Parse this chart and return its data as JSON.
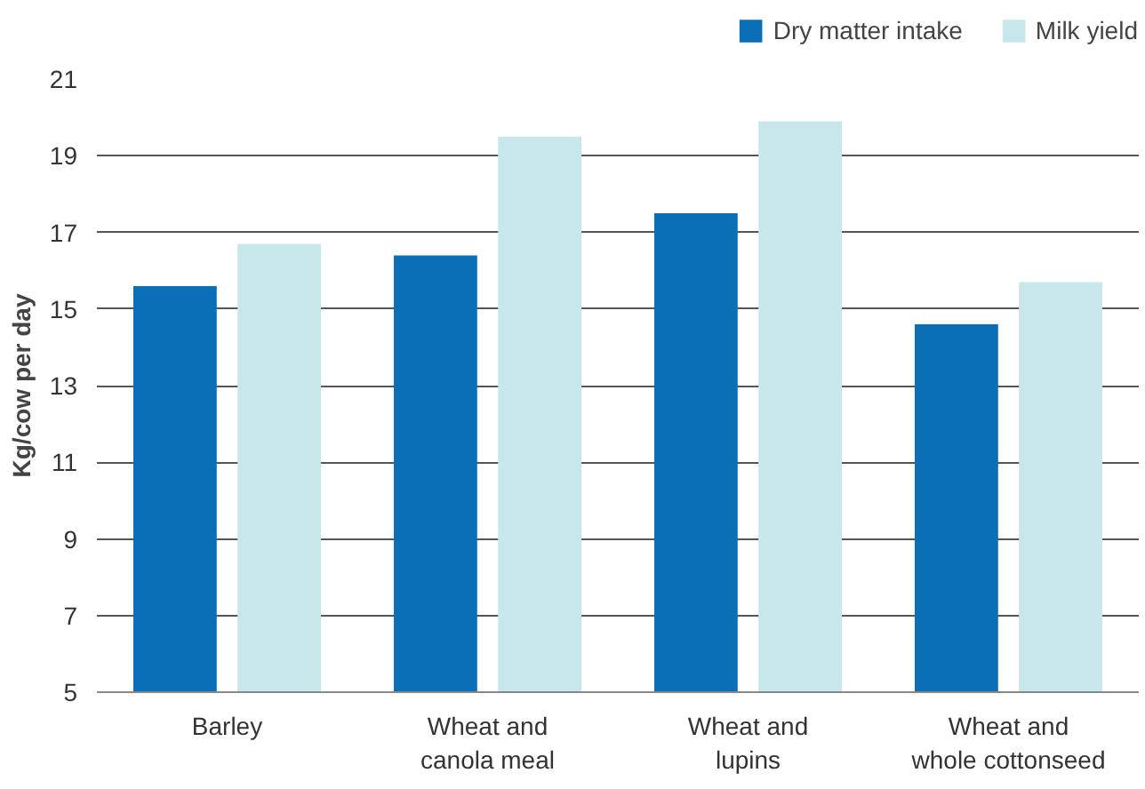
{
  "chart_data": {
    "type": "bar",
    "ylabel": "Kg/cow per day",
    "categories": [
      "Barley",
      "Wheat and\ncanola meal",
      "Wheat and\nlupins",
      "Wheat and\nwhole cottonseed"
    ],
    "series": [
      {
        "name": "Dry matter intake",
        "color": "#0a6fb6",
        "values": [
          15.6,
          16.4,
          17.5,
          14.6
        ]
      },
      {
        "name": "Milk yield",
        "color": "#c8e7ea",
        "values": [
          16.7,
          19.5,
          19.9,
          15.7
        ]
      }
    ],
    "ylim": [
      5,
      21
    ],
    "yticks": [
      5,
      7,
      9,
      11,
      13,
      15,
      17,
      19,
      21
    ],
    "grid": "y",
    "legend": "top right"
  }
}
